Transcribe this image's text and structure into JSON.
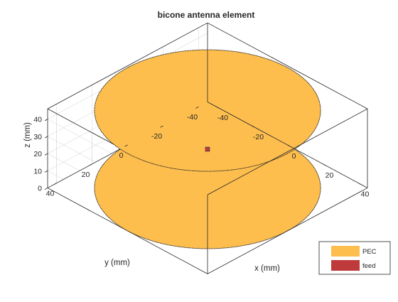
{
  "chart_data": {
    "type": "3d-surface",
    "title": "bicone antenna element",
    "xlabel": "x (mm)",
    "ylabel": "y (mm)",
    "zlabel": "z (mm)",
    "xlim": [
      -45,
      45
    ],
    "ylim": [
      -45,
      45
    ],
    "zlim": [
      0,
      46
    ],
    "xticks": [
      -40,
      -20,
      0,
      20,
      40
    ],
    "yticks": [
      -40,
      -20,
      0,
      20,
      40
    ],
    "zticks": [
      0,
      10,
      20,
      30,
      40
    ],
    "grid": true,
    "box": true,
    "legend_position": "bottom-right",
    "objects": [
      {
        "name": "PEC",
        "shape": "disc",
        "radius": 45,
        "z": 0
      },
      {
        "name": "PEC",
        "shape": "disc",
        "radius": 45,
        "z": 45
      },
      {
        "name": "feed",
        "shape": "point",
        "x": 0,
        "y": 0,
        "z": 22.5
      }
    ],
    "legend": [
      {
        "label": "PEC",
        "color": "#FDBE4E"
      },
      {
        "label": "feed",
        "color": "#BF3B3B"
      }
    ]
  },
  "colors": {
    "pec": "#FDBE4E",
    "feed": "#BF3B3B",
    "axis": "#262626",
    "grid": "#DCDCDC"
  }
}
